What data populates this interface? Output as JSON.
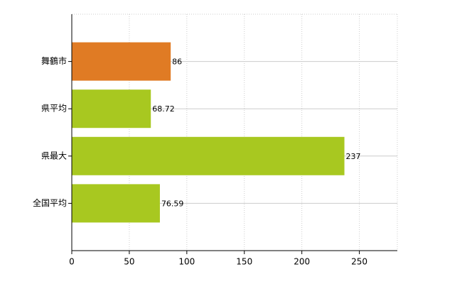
{
  "chart_data": {
    "type": "hbar",
    "categories": [
      "舞鶴市",
      "県平均",
      "県最大",
      "全国平均"
    ],
    "values": [
      86,
      68.72,
      237,
      76.59
    ],
    "colors": [
      "#e07b24",
      "#a8c820",
      "#a8c820",
      "#a8c820"
    ],
    "xlim": [
      0,
      283
    ],
    "xticks": [
      0,
      50,
      100,
      150,
      200,
      250
    ],
    "grid": true
  }
}
